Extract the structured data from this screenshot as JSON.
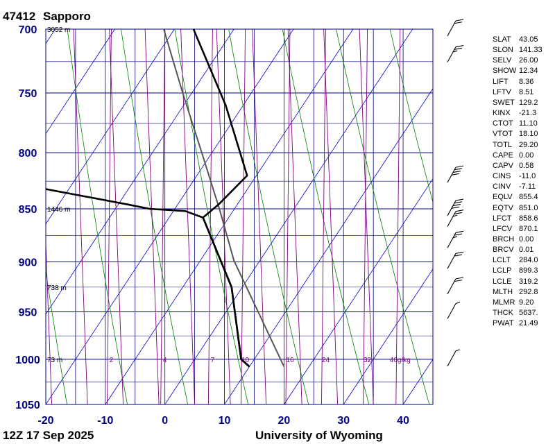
{
  "header": {
    "station": "47412",
    "name": "Sapporo",
    "time": "12Z 17 Sep 2025",
    "source": "University of Wyoming"
  },
  "colors": {
    "axis_text": "#000080",
    "isotherm": "#000080",
    "dry_adiabat": "#008000",
    "moist_adiabat": "#0000cd",
    "mixing_ratio": "#800080",
    "temperature": "#000000",
    "dewpoint": "#000000",
    "parcel": "#555555"
  },
  "chart_data": {
    "type": "skew-t",
    "pressure_ticks": [
      700,
      750,
      800,
      850,
      900,
      950,
      1000,
      1050
    ],
    "temperature_ticks": [
      -20,
      -10,
      0,
      10,
      20,
      30,
      40
    ],
    "xlim": [
      -20,
      45
    ],
    "ylim": [
      1050,
      700
    ],
    "y_scale": "log",
    "height_labels": [
      {
        "p": 700,
        "label": "3052 m"
      },
      {
        "p": 850,
        "label": "1446 m"
      },
      {
        "p": 925,
        "label": "738 m"
      },
      {
        "p": 1000,
        "label": "73 m"
      }
    ],
    "mixing_ratio_labels": [
      "2",
      "4",
      "7",
      "10",
      "16",
      "24",
      "32",
      "40g/kg"
    ],
    "mixing_ratio_label_x": [
      -9,
      0,
      8,
      13.5,
      21,
      27,
      34,
      39.5
    ],
    "temperature_profile": [
      {
        "p": 1008,
        "x": 14.2
      },
      {
        "p": 1000,
        "x": 12.8
      },
      {
        "p": 925,
        "x": 11.2
      },
      {
        "p": 858,
        "x": 6.4
      },
      {
        "p": 846,
        "x": 9.0
      },
      {
        "p": 820,
        "x": 13.8
      },
      {
        "p": 760,
        "x": 10.2
      },
      {
        "p": 700,
        "x": 4.8
      }
    ],
    "dewpoint_profile": [
      {
        "p": 1008,
        "x": 14.2
      },
      {
        "p": 1000,
        "x": 12.8
      },
      {
        "p": 925,
        "x": 11.2
      },
      {
        "p": 858,
        "x": 6.4
      },
      {
        "p": 852,
        "x": 3.4
      },
      {
        "p": 850,
        "x": -2.5
      },
      {
        "p": 846,
        "x": -6.2
      },
      {
        "p": 832,
        "x": -20.0
      }
    ],
    "parcel_profile": [
      {
        "p": 1008,
        "x": 20.0
      },
      {
        "p": 899,
        "x": 11.6
      },
      {
        "p": 851,
        "x": 9.2
      },
      {
        "p": 800,
        "x": 6.2
      },
      {
        "p": 750,
        "x": 3.0
      },
      {
        "p": 700,
        "x": -0.2
      }
    ],
    "wind_barbs": [
      {
        "p": 1000,
        "barbs": 1
      },
      {
        "p": 950,
        "barbs": 1
      },
      {
        "p": 925,
        "barbs": 2
      },
      {
        "p": 900,
        "barbs": 2
      },
      {
        "p": 880,
        "barbs": 3
      },
      {
        "p": 860,
        "barbs": 3
      },
      {
        "p": 850,
        "barbs": 4
      },
      {
        "p": 820,
        "barbs": 4
      },
      {
        "p": 720,
        "barbs": 3
      },
      {
        "p": 700,
        "barbs": 2
      }
    ]
  },
  "parameters": [
    {
      "name": "SLAT",
      "value": "43.05"
    },
    {
      "name": "SLON",
      "value": "141.33"
    },
    {
      "name": "SELV",
      "value": "26.00"
    },
    {
      "name": "SHOW",
      "value": "12.34"
    },
    {
      "name": "LIFT",
      "value": "8.36"
    },
    {
      "name": "LFTV",
      "value": "8.51"
    },
    {
      "name": "SWET",
      "value": "129.2"
    },
    {
      "name": "KINX",
      "value": "-21.3"
    },
    {
      "name": "CTOT",
      "value": "11.10"
    },
    {
      "name": "VTOT",
      "value": "18.10"
    },
    {
      "name": "TOTL",
      "value": "29.20"
    },
    {
      "name": "CAPE",
      "value": "0.00"
    },
    {
      "name": "CAPV",
      "value": "0.58"
    },
    {
      "name": "CINS",
      "value": "-11.0"
    },
    {
      "name": "CINV",
      "value": "-7.11"
    },
    {
      "name": "EQLV",
      "value": "855.4"
    },
    {
      "name": "EQTV",
      "value": "851.0"
    },
    {
      "name": "LFCT",
      "value": "858.6"
    },
    {
      "name": "LFCV",
      "value": "870.1"
    },
    {
      "name": "BRCH",
      "value": "0.00"
    },
    {
      "name": "BRCV",
      "value": "0.01"
    },
    {
      "name": "LCLT",
      "value": "284.0"
    },
    {
      "name": "LCLP",
      "value": "899.3"
    },
    {
      "name": "LCLE",
      "value": "319.2"
    },
    {
      "name": "MLTH",
      "value": "292.8"
    },
    {
      "name": "MLMR",
      "value": "9.20"
    },
    {
      "name": "THCK",
      "value": "5637."
    },
    {
      "name": "PWAT",
      "value": "21.49"
    }
  ]
}
